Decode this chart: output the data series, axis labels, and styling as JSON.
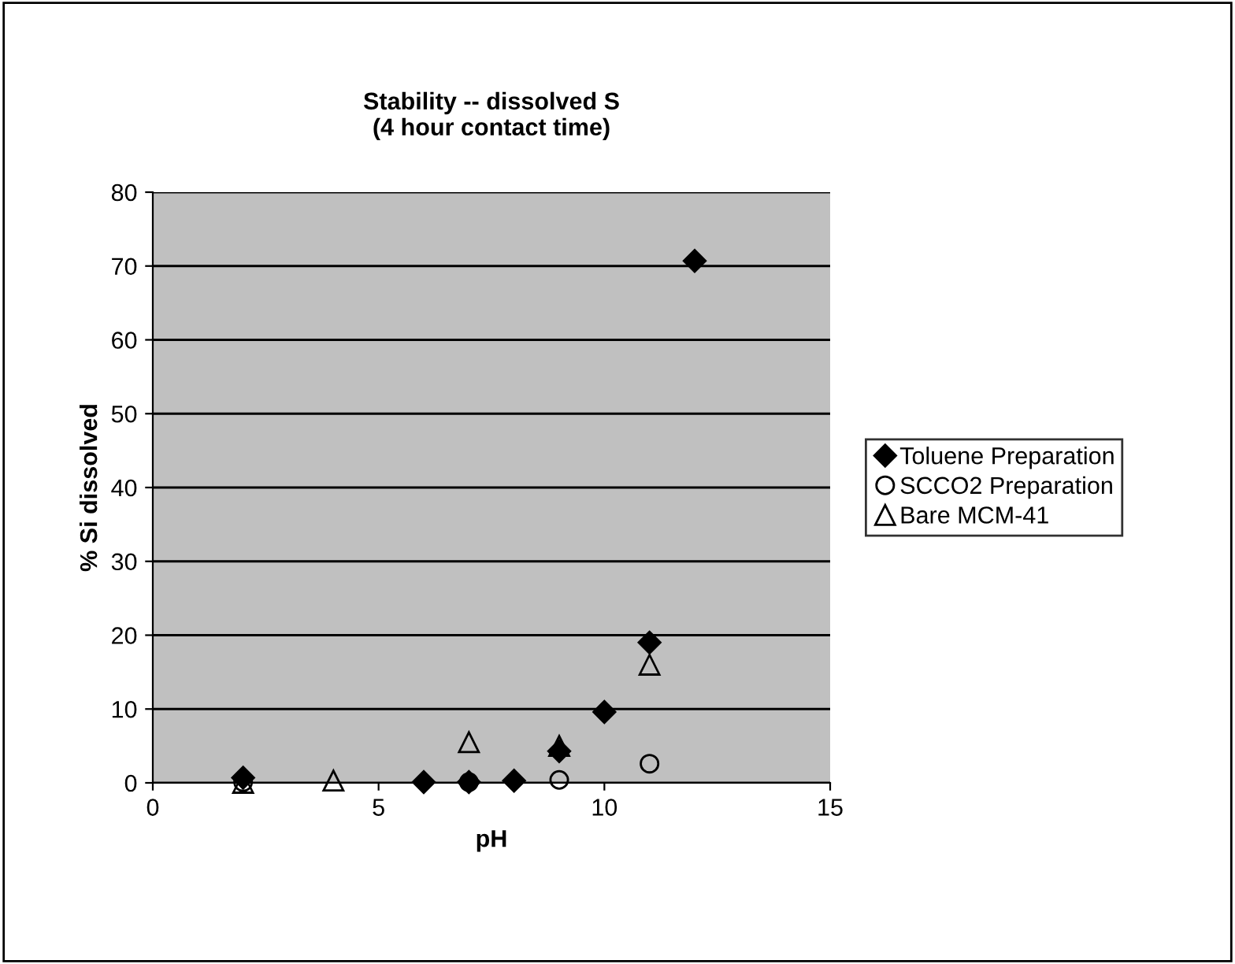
{
  "chart_data": {
    "type": "scatter",
    "title": "Stability -- dissolved S\n(4 hour contact time)",
    "xlabel": "pH",
    "ylabel": "% Si dissolved",
    "xlim": [
      0,
      15
    ],
    "xticks": [
      0,
      5,
      10,
      15
    ],
    "ylim": [
      0,
      80
    ],
    "yticks": [
      0,
      10,
      20,
      30,
      40,
      50,
      60,
      70,
      80
    ],
    "grid": "y",
    "legend": "right",
    "series": [
      {
        "name": "Toluene Preparation",
        "color": "#000000",
        "marker": "diamond",
        "x": [
          2,
          6,
          7,
          8,
          9,
          10,
          11,
          12
        ],
        "values": [
          0.7,
          0.1,
          0.1,
          0.3,
          4.3,
          9.6,
          19,
          70.7
        ]
      },
      {
        "name": "SCCO2 Preparation",
        "color": "#000000",
        "marker": "circle",
        "x": [
          2,
          7,
          9,
          11
        ],
        "values": [
          0.1,
          0.1,
          0.4,
          2.6
        ]
      },
      {
        "name": "Bare MCM-41",
        "color": "#000000",
        "marker": "triangle",
        "x": [
          2,
          4,
          7,
          9,
          11
        ],
        "values": [
          0,
          0.3,
          5.5,
          5,
          16
        ]
      }
    ]
  }
}
